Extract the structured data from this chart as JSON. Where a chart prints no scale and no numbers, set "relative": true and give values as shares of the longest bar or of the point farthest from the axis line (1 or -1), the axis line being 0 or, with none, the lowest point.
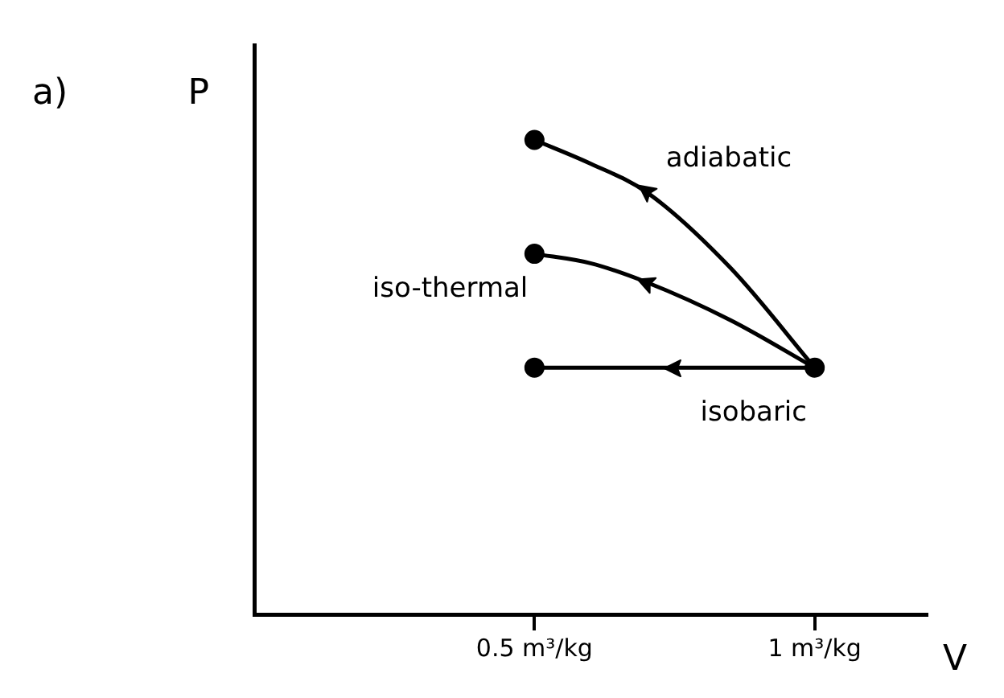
{
  "chart_data": {
    "type": "line",
    "relative": true,
    "xlabel": "V",
    "ylabel": "P",
    "annotations": [
      "a)"
    ],
    "xlim": [
      0,
      1.2
    ],
    "xticks": [
      {
        "value": 0.5,
        "label": "0.5 m³/kg"
      },
      {
        "value": 1,
        "label": "1 m³/kg"
      }
    ],
    "tick_labels": "x",
    "grid": false,
    "legend": false,
    "marker": "none",
    "line_style": "solid",
    "series": [
      {
        "name": "adiabatic",
        "color": "#000000",
        "x": [
          0.5,
          0.6,
          0.7,
          0.85,
          1
        ],
        "values": [
          1,
          0.95,
          0.89,
          0.73,
          0.52
        ]
      },
      {
        "name": "iso-thermal",
        "color": "#000000",
        "x": [
          0.5,
          0.6,
          0.7,
          0.85,
          1
        ],
        "values": [
          0.76,
          0.74,
          0.7,
          0.62,
          0.52
        ]
      },
      {
        "name": "isobaric",
        "color": "#000000",
        "x": [
          0.5,
          0.75,
          1
        ],
        "values": [
          0.52,
          0.52,
          0.52
        ]
      },
      {
        "type": "scatter",
        "marker": "circle",
        "color": "#000000",
        "x": [
          0.5,
          0.5,
          0.5,
          1
        ],
        "values": [
          1,
          0.76,
          0.52,
          0.52
        ]
      }
    ]
  }
}
